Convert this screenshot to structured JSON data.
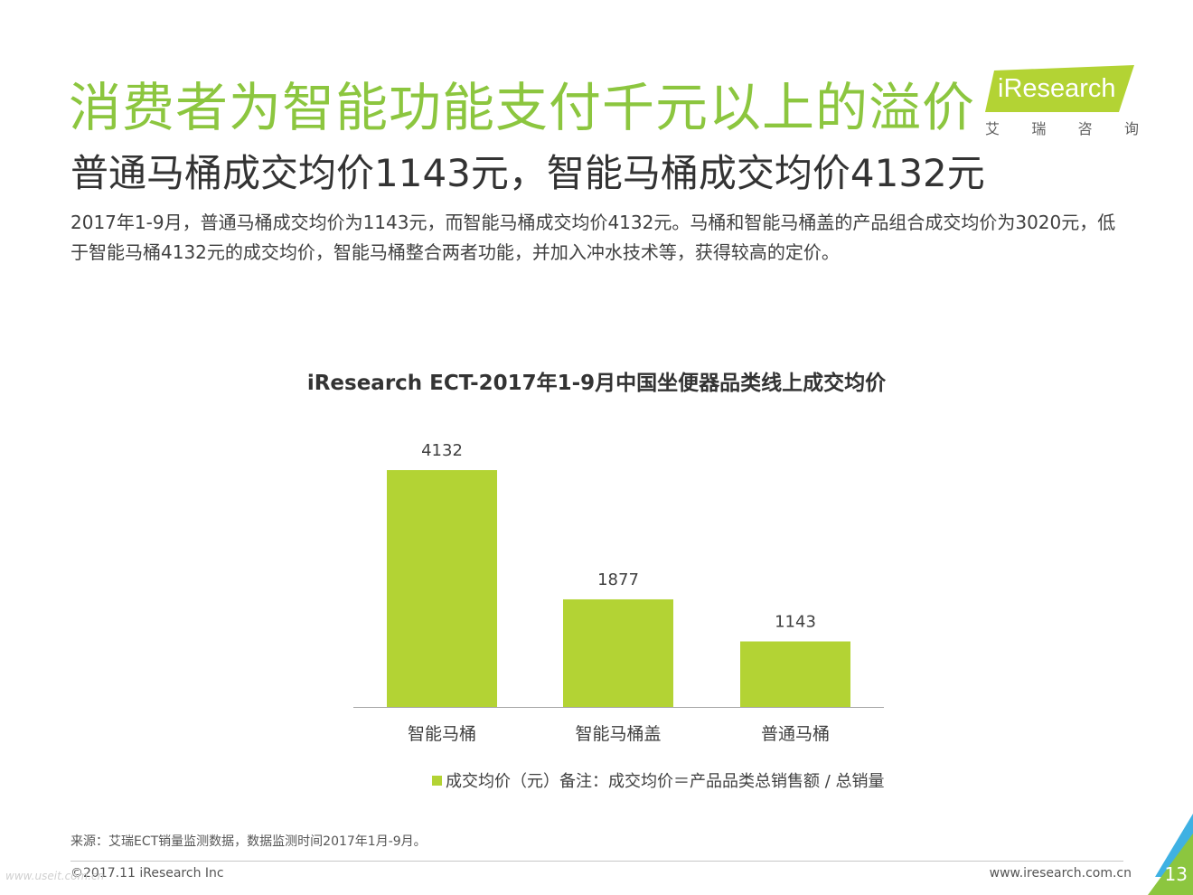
{
  "header": {
    "title": "消费者为智能功能支付千元以上的溢价",
    "subtitle": "普通马桶成交均价1143元，智能马桶成交均价4132元",
    "description": "2017年1-9月，普通马桶成交均价为1143元，而智能马桶成交均价4132元。马桶和智能马桶盖的产品组合成交均价为3020元，低于智能马桶4132元的成交均价，智能马桶整合两者功能，并加入冲水技术等，获得较高的定价。"
  },
  "logo": {
    "en": "iResearch",
    "cn": [
      "艾",
      "瑞",
      "咨",
      "询"
    ]
  },
  "chart_data": {
    "type": "bar",
    "title": "iResearch ECT-2017年1-9月中国坐便器品类线上成交均价",
    "categories": [
      "智能马桶",
      "智能马桶盖",
      "普通马桶"
    ],
    "series": [
      {
        "name": "成交均价（元）",
        "values": [
          4132,
          1877,
          1143
        ]
      }
    ],
    "note": "备注：成交均价＝产品品类总销售额 / 总销量",
    "ylim": [
      0,
      4132
    ],
    "grid": false,
    "legend": "bottom",
    "bar_color": "#b3d334"
  },
  "footer": {
    "source": "来源：艾瑞ECT销量监测数据，数据监测时间2017年1月-9月。",
    "copyright": "©2017.11 iResearch Inc",
    "website": "www.iresearch.com.cn",
    "page_number": "13",
    "watermark": "www.useit.com.cn"
  },
  "colors": {
    "title_green": "#8cc63f",
    "logo_green": "#b3d334",
    "corner_blue": "#3fb1e3"
  }
}
